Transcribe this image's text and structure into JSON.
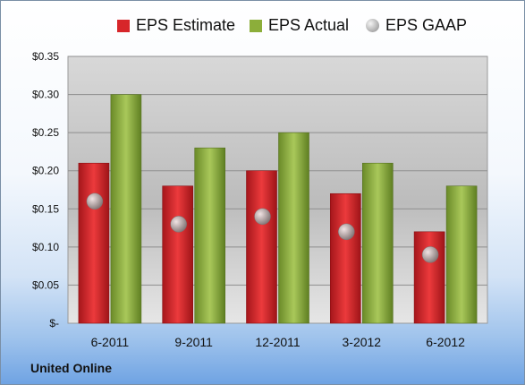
{
  "chart_data": {
    "type": "bar",
    "categories": [
      "6-2011",
      "9-2011",
      "12-2011",
      "3-2012",
      "6-2012"
    ],
    "series": [
      {
        "name": "EPS Estimate",
        "values": [
          0.21,
          0.18,
          0.2,
          0.17,
          0.12
        ],
        "color": "#d7262a"
      },
      {
        "name": "EPS Actual",
        "values": [
          0.3,
          0.23,
          0.25,
          0.21,
          0.18
        ],
        "color": "#8cae3a"
      },
      {
        "name": "EPS GAAP",
        "values": [
          0.16,
          0.13,
          0.14,
          0.12,
          0.09
        ],
        "color": "#a6a6a6",
        "marker": "circle"
      }
    ],
    "yticks": [
      "$-",
      "$0.05",
      "$0.10",
      "$0.15",
      "$0.20",
      "$0.25",
      "$0.30",
      "$0.35"
    ],
    "ylim": [
      0,
      0.35
    ],
    "grid": true,
    "legend": "top"
  },
  "caption": "United Online"
}
